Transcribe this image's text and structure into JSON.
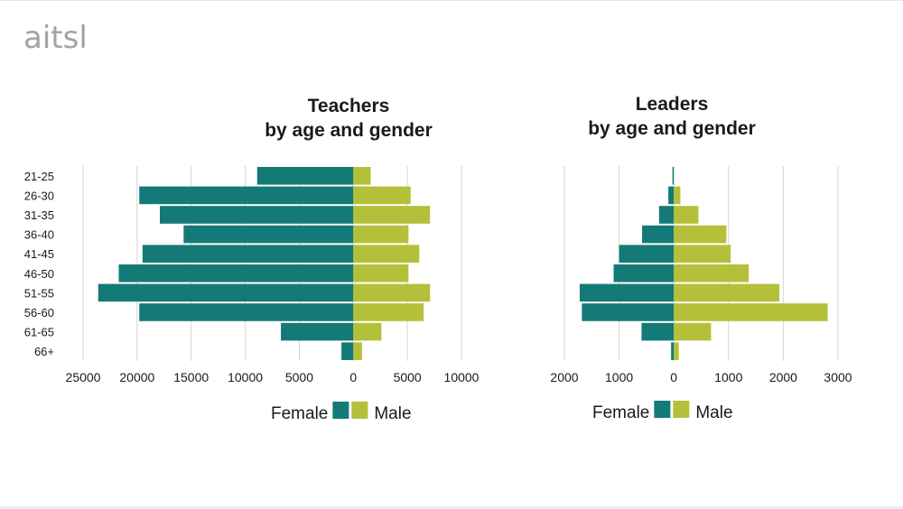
{
  "logo": "aitsl",
  "colors": {
    "female": "#147a78",
    "male": "#b5c03a"
  },
  "chart_data": [
    {
      "type": "bar",
      "orientation": "horizontal-pyramid",
      "title": [
        "Teachers",
        "by age and gender"
      ],
      "categories": [
        "21-25",
        "26-30",
        "31-35",
        "36-40",
        "41-45",
        "46-50",
        "51-55",
        "56-60",
        "61-65",
        "66+"
      ],
      "series": [
        {
          "name": "Female",
          "values": [
            8900,
            19800,
            17900,
            15700,
            19500,
            21700,
            23600,
            19800,
            6700,
            1100
          ]
        },
        {
          "name": "Male",
          "values": [
            1600,
            5300,
            7100,
            5100,
            6100,
            5100,
            7100,
            6500,
            2600,
            800
          ]
        }
      ],
      "xlim": [
        -25000,
        10000
      ],
      "xticks": [
        -25000,
        -20000,
        -15000,
        -10000,
        -5000,
        0,
        5000,
        10000
      ],
      "tick_labels": [
        "25000",
        "20000",
        "15000",
        "10000",
        "5000",
        "0",
        "5000",
        "10000"
      ],
      "grid": true,
      "legend": {
        "placement": "bottom",
        "entries": [
          "Female",
          "Male"
        ]
      }
    },
    {
      "type": "bar",
      "orientation": "horizontal-pyramid",
      "title": [
        "Leaders",
        "by age and gender"
      ],
      "categories": [
        "21-25",
        "26-30",
        "31-35",
        "36-40",
        "41-45",
        "46-50",
        "51-55",
        "56-60",
        "61-65",
        "66+"
      ],
      "series": [
        {
          "name": "Female",
          "values": [
            25,
            100,
            270,
            580,
            1000,
            1100,
            1720,
            1680,
            590,
            50
          ]
        },
        {
          "name": "Male",
          "values": [
            0,
            120,
            450,
            960,
            1040,
            1370,
            1930,
            2810,
            680,
            90
          ]
        }
      ],
      "xlim": [
        -2000,
        3000
      ],
      "xticks": [
        -2000,
        -1000,
        0,
        1000,
        2000,
        3000
      ],
      "tick_labels": [
        "2000",
        "1000",
        "0",
        "1000",
        "2000",
        "3000"
      ],
      "grid": true,
      "legend": {
        "placement": "bottom",
        "entries": [
          "Female",
          "Male"
        ]
      }
    }
  ]
}
